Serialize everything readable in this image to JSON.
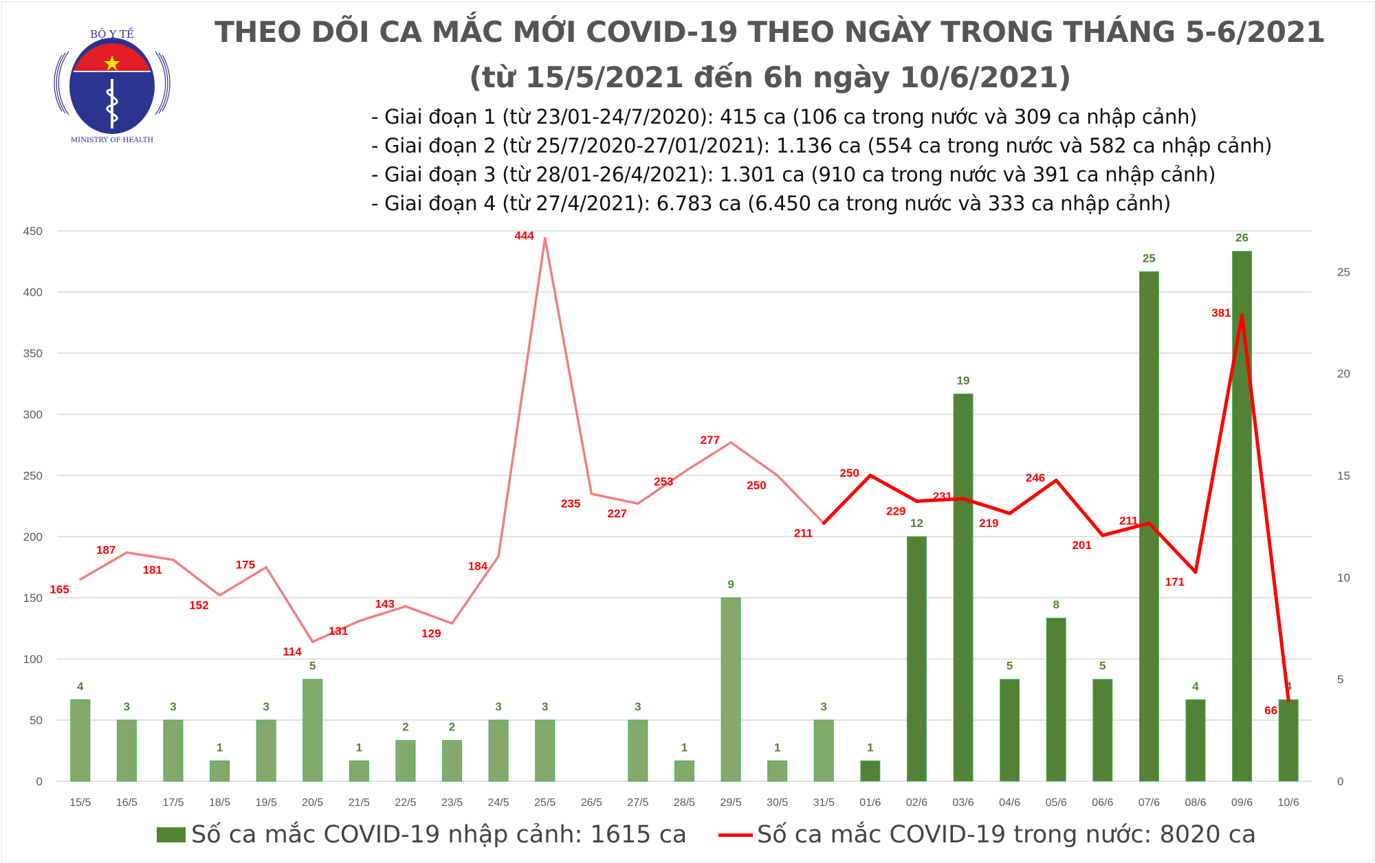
{
  "header": {
    "title_line1": "THEO DÕI CA MẮC MỚI COVID-19 THEO NGÀY TRONG THÁNG 5-6/2021",
    "title_line2": "(từ 15/5/2021 đến 6h ngày 10/6/2021)",
    "phases": [
      "- Giai đoạn 1 (từ 23/01-24/7/2020): 415 ca (106 ca trong nước và 309 ca nhập cảnh)",
      "- Giai đoạn 2 (từ 25/7/2020-27/01/2021): 1.136 ca (554 ca trong nước và 582 ca nhập cảnh)",
      "- Giai đoạn 3 (từ 28/01-26/4/2021): 1.301 ca (910 ca trong nước và 391 ca nhập cảnh)",
      "- Giai đoạn 4 (từ 27/4/2021): 6.783 ca (6.450 ca trong nước và 333 ca nhập cảnh)"
    ],
    "logo": {
      "top_text": "BỘ Y TẾ",
      "bottom_text": "MINISTRY OF HEALTH"
    }
  },
  "chart_data": {
    "type": "bar+line",
    "categories": [
      "15/5",
      "16/5",
      "17/5",
      "18/5",
      "19/5",
      "20/5",
      "21/5",
      "22/5",
      "23/5",
      "24/5",
      "25/5",
      "26/5",
      "27/5",
      "28/5",
      "29/5",
      "30/5",
      "31/5",
      "01/6",
      "02/6",
      "03/6",
      "04/6",
      "05/6",
      "06/6",
      "07/6",
      "08/6",
      "09/6",
      "10/6"
    ],
    "series": [
      {
        "name": "Số ca mắc COVID-19 nhập cảnh: 1615 ca",
        "type": "bar",
        "axis": "right",
        "values": [
          4,
          3,
          3,
          1,
          3,
          5,
          1,
          2,
          2,
          3,
          3,
          null,
          3,
          1,
          9,
          1,
          3,
          1,
          12,
          19,
          5,
          8,
          5,
          25,
          4,
          26,
          4
        ]
      },
      {
        "name": "Số ca mắc COVID-19 trong nước: 8020 ca",
        "type": "line",
        "axis": "left",
        "values": [
          165,
          187,
          181,
          152,
          175,
          114,
          131,
          143,
          129,
          184,
          444,
          235,
          227,
          253,
          277,
          250,
          211,
          250,
          229,
          231,
          219,
          246,
          201,
          211,
          171,
          381,
          66
        ]
      }
    ],
    "left_axis": {
      "ylim": [
        0,
        450
      ],
      "ticks": [
        0,
        50,
        100,
        150,
        200,
        250,
        300,
        350,
        400,
        450
      ]
    },
    "right_axis": {
      "ylim": [
        0,
        27
      ],
      "ticks": [
        0,
        5,
        10,
        15,
        20,
        25
      ]
    },
    "grid": true,
    "legend_position": "bottom",
    "highlight_from": "31/5",
    "colors": {
      "bar_light": "#84a96c",
      "bar_dark": "#538135",
      "bar_label": "#538135",
      "line_light": "#f08080",
      "line_dark": "#ff0000",
      "line_label": "#ff0000"
    }
  }
}
